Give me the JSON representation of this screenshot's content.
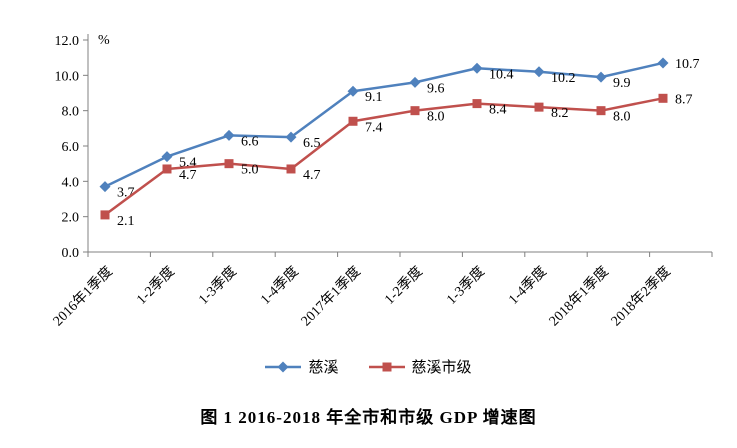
{
  "page": {
    "caption": "图 1 2016-2018 年全市和市级 GDP 增速图"
  },
  "chart_data": {
    "type": "line",
    "title": "",
    "xlabel": "",
    "ylabel": "%",
    "unit_label": "%",
    "categories": [
      "2016年1季度",
      "1-2季度",
      "1-3季度",
      "1-4季度",
      "2017年1季度",
      "1-2季度",
      "1-3季度",
      "1-4季度",
      "2018年1季度",
      "2018年2季度"
    ],
    "series": [
      {
        "name": "慈溪",
        "color": "#4F81BD",
        "marker": "diamond",
        "values": [
          3.7,
          5.4,
          6.6,
          6.5,
          9.1,
          9.6,
          10.4,
          10.2,
          9.9,
          10.7
        ]
      },
      {
        "name": "慈溪市级",
        "color": "#C0504D",
        "marker": "square",
        "values": [
          2.1,
          4.7,
          5.0,
          4.7,
          7.4,
          8.0,
          8.4,
          8.2,
          8.0,
          8.7
        ]
      }
    ],
    "ylim": [
      0,
      12
    ],
    "ytick_step": 2,
    "ytick_labels": [
      "0.0",
      "2.0",
      "4.0",
      "6.0",
      "8.0",
      "10.0",
      "12.0"
    ],
    "grid": false,
    "legend_position": "bottom",
    "axis_color": "#808080",
    "text_color": "#000000"
  }
}
